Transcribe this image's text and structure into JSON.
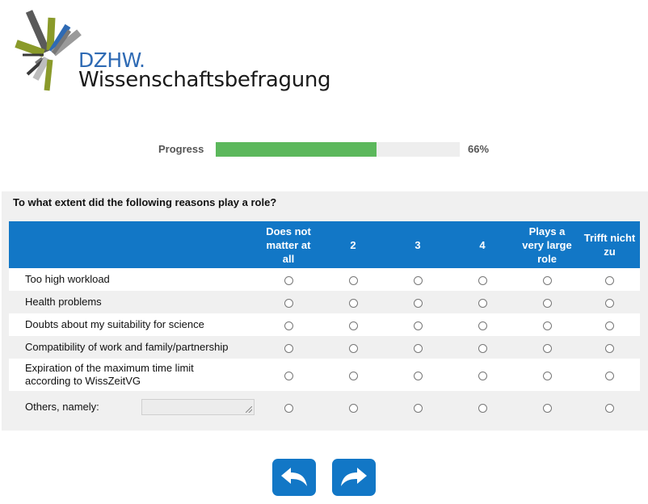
{
  "brand": {
    "name": "DZHW.",
    "subtitle": "Wissenschaftsbefragung",
    "logo_icon": "dzhw-starburst-logo"
  },
  "progress": {
    "label": "Progress",
    "value_text": "66%",
    "fraction": 0.66,
    "fill_color": "#5cb85c"
  },
  "question": {
    "text": "To what extent did the following reasons play a role?",
    "columns": [
      "Does not matter at all",
      "2",
      "3",
      "4",
      "Plays a very large role",
      "Trifft nicht zu"
    ],
    "rows": [
      "Too high workload",
      "Health problems",
      "Doubts about my suitability for science",
      "Compatibility of work and family/partnership",
      "Expiration of the maximum time limit according to WissZeitVG"
    ],
    "other_label": "Others, namely:",
    "other_value": "",
    "header_color": "#1277c6"
  },
  "navigation": {
    "back_icon": "back-arrow-icon",
    "next_icon": "forward-arrow-icon"
  }
}
